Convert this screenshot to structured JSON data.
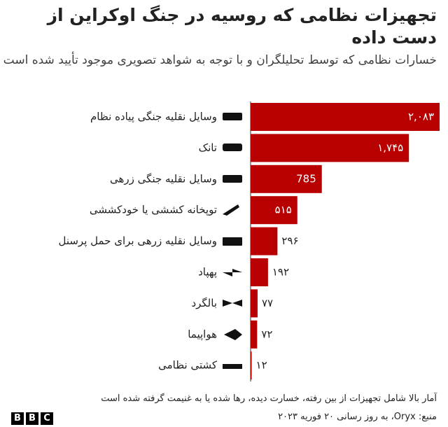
{
  "chart_data": {
    "type": "bar",
    "orientation": "horizontal",
    "title": "تجهیزات نظامی که روسیه در جنگ اوکراین از دست داده",
    "subtitle": "خسارات نظامی که توسط تحلیلگران و با توجه به شواهد تصویری موجود تأیید شده است",
    "categories": [
      "وسایل نقلیه جنگی پیاده نظام",
      "تانک",
      "وسایل نقلیه جنگی زرهی",
      "توپخانه کششی یا خودکششی",
      "وسایل نقلیه زرهی برای حمل پرسنل",
      "پهپاد",
      "بالگرد",
      "هواپیما",
      "کشتی نظامی"
    ],
    "values": [
      2083,
      1745,
      785,
      515,
      296,
      192,
      77,
      72,
      12
    ],
    "value_labels": [
      "۲,۰۸۳",
      "۱,۷۴۵",
      "785",
      "۵۱۵",
      "۲۹۶",
      "۱۹۲",
      "۷۷",
      "۷۲",
      "۱۲"
    ],
    "color": "#b80000",
    "note": "آمار بالا شامل تجهیزات از بین رفته، خسارت دیده، رها شده یا به غنیمت گرفته شده است",
    "source": "منبع: Oryx، به روز رسانی ۲۰ فوریه ۲۰۲۳",
    "logo": [
      "B",
      "B",
      "C"
    ]
  }
}
